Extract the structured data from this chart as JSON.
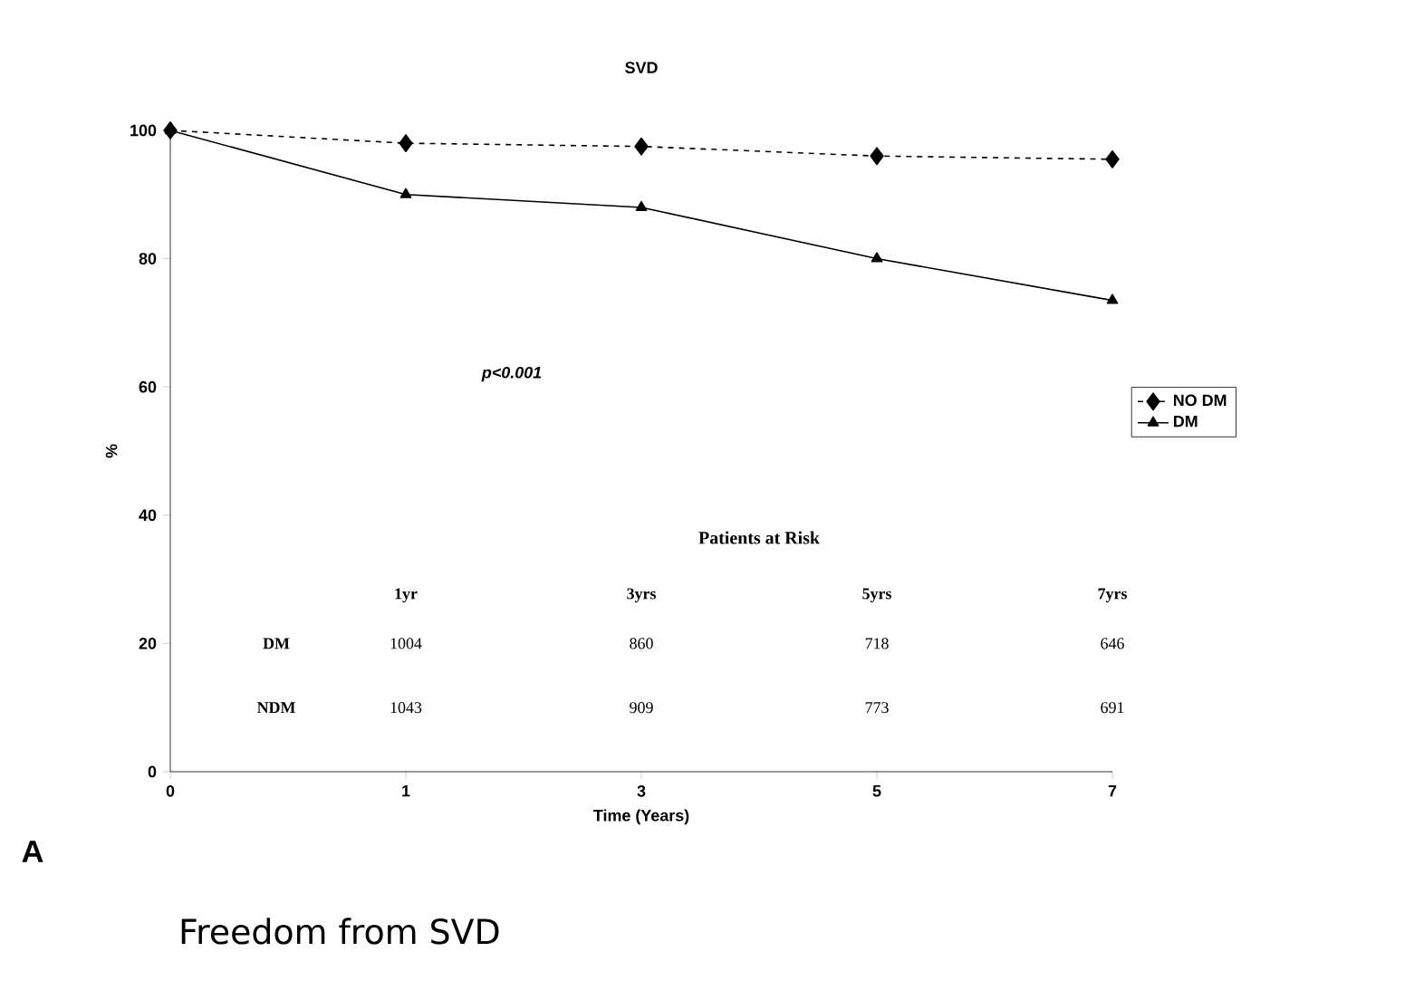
{
  "chart_data": {
    "type": "line",
    "title": "SVD",
    "xlabel": "Time (Years)",
    "ylabel": "%",
    "categories": [
      "0",
      "1",
      "3",
      "5",
      "7"
    ],
    "series": [
      {
        "name": "NO DM",
        "color": "#000000",
        "values": [
          100,
          98,
          97.5,
          96,
          95.5
        ],
        "marker": "diamond",
        "line_style": "dashed"
      },
      {
        "name": "DM",
        "color": "#000000",
        "values": [
          100,
          90,
          88,
          80,
          73.5
        ],
        "marker": "triangle",
        "line_style": "solid"
      }
    ],
    "ylim": [
      0,
      100
    ],
    "yticks": [
      0,
      20,
      40,
      60,
      80,
      100
    ],
    "grid": false,
    "legend": "right",
    "annotations": [
      "*p<0.001*",
      "Patients at Risk",
      "1yr",
      "3yrs",
      "5yrs",
      "7yrs",
      "DM",
      "1004",
      "860",
      "718",
      "646",
      "NDM",
      "1043",
      "909",
      "773",
      "691",
      "A",
      "Freedom from SVD"
    ]
  }
}
